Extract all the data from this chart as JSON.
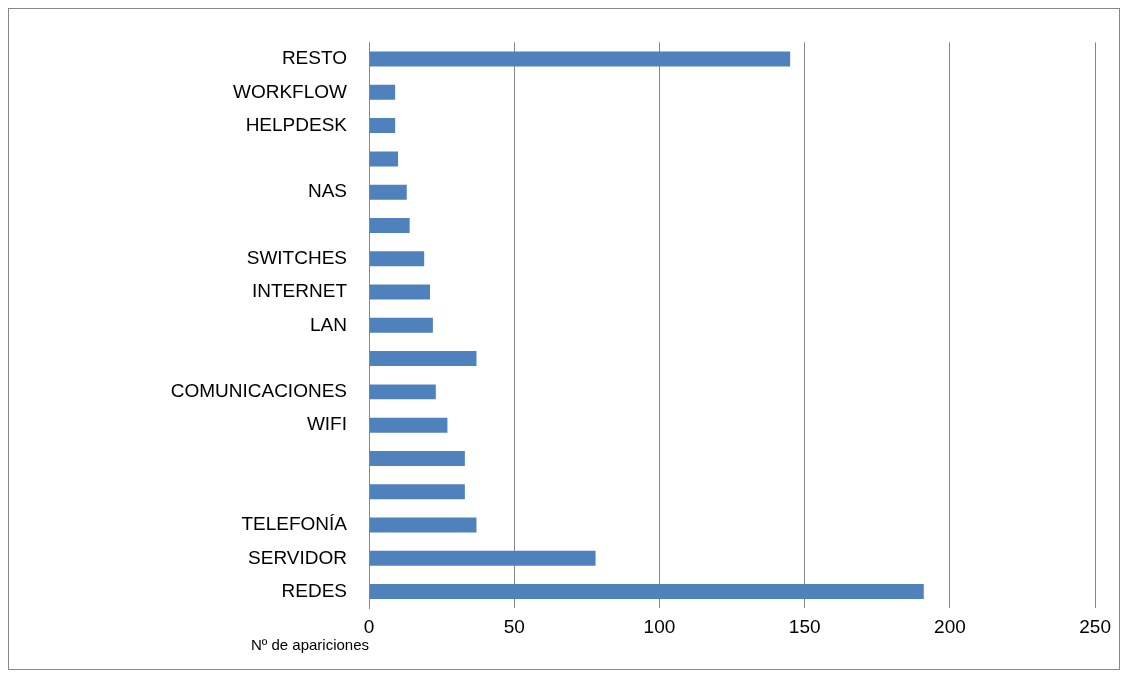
{
  "chart_data": {
    "type": "bar",
    "orientation": "horizontal",
    "xlabel": "Nº de apariciones",
    "categories": [
      "RESTO",
      "WORKFLOW",
      "HELPDESK",
      null,
      "NAS",
      null,
      "SWITCHES",
      "INTERNET",
      "LAN",
      null,
      "COMUNICACIONES",
      "WIFI",
      null,
      null,
      "TELEFONÍA",
      "SERVIDOR",
      "REDES"
    ],
    "values": [
      145,
      9,
      9,
      10,
      13,
      14,
      19,
      21,
      22,
      37,
      23,
      27,
      33,
      33,
      37,
      78,
      191
    ],
    "color": "#4f81bd",
    "xlim": [
      0,
      250
    ],
    "xticks": [
      0,
      50,
      100,
      150,
      200,
      250
    ],
    "grid": "x",
    "legend": false
  }
}
